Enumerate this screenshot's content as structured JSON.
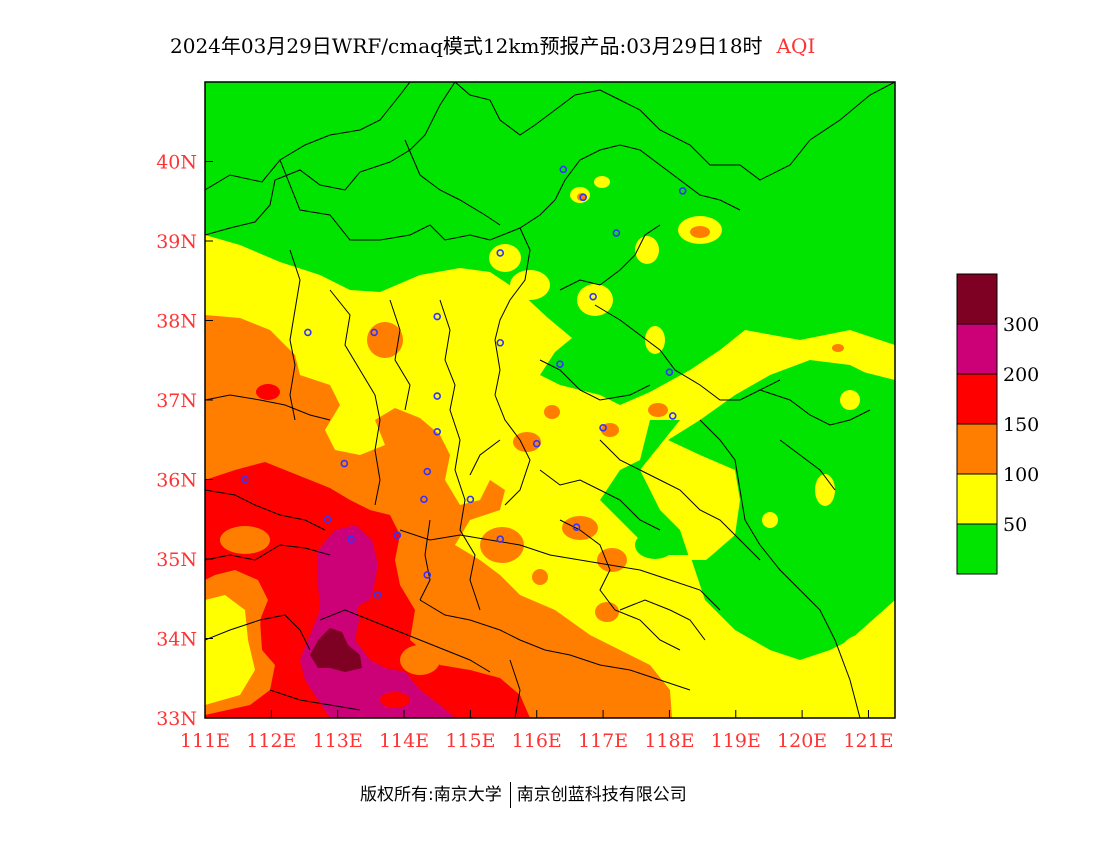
{
  "title": {
    "main": "2024年03月29日WRF/cmaq模式12km预报产品:03月29日18时",
    "variable": "AQI"
  },
  "footer": {
    "copyright": "版权所有:南京大学",
    "company": "南京创蓝科技有限公司"
  },
  "map": {
    "lon_range": [
      111,
      121.4
    ],
    "lat_range": [
      33,
      41
    ],
    "lon_ticks": [
      "111E",
      "112E",
      "113E",
      "114E",
      "115E",
      "116E",
      "117E",
      "118E",
      "119E",
      "120E",
      "121E"
    ],
    "lat_ticks": [
      "33N",
      "34N",
      "35N",
      "36N",
      "37N",
      "38N",
      "39N",
      "40N"
    ],
    "station_marker_color": "#3333ff",
    "border_color": "#000000"
  },
  "legend": {
    "bins": [
      {
        "color": "#7e0023",
        "label": "300"
      },
      {
        "color": "#cc0077",
        "label": "200"
      },
      {
        "color": "#ff0000",
        "label": "150"
      },
      {
        "color": "#ff7e00",
        "label": "100"
      },
      {
        "color": "#ffff00",
        "label": "50"
      },
      {
        "color": "#00e400",
        "label": ""
      }
    ],
    "top_label": "300",
    "labels": [
      "300",
      "200",
      "150",
      "100",
      "50"
    ]
  },
  "colors": {
    "good": "#00e400",
    "moderate": "#ffff00",
    "usg": "#ff7e00",
    "unhealthy": "#ff0000",
    "very_unhealthy": "#cc0077",
    "hazardous": "#7e0023",
    "tick_label": "#ff3333"
  },
  "stations": [
    [
      116.4,
      39.9
    ],
    [
      116.7,
      39.55
    ],
    [
      117.2,
      39.1
    ],
    [
      118.2,
      39.63
    ],
    [
      115.45,
      38.85
    ],
    [
      116.85,
      38.3
    ],
    [
      112.55,
      37.85
    ],
    [
      113.55,
      37.85
    ],
    [
      114.5,
      38.05
    ],
    [
      115.45,
      37.72
    ],
    [
      116.35,
      37.45
    ],
    [
      117.0,
      36.65
    ],
    [
      114.5,
      37.05
    ],
    [
      114.5,
      36.6
    ],
    [
      113.1,
      36.2
    ],
    [
      114.35,
      36.1
    ],
    [
      116.0,
      36.45
    ],
    [
      118.0,
      37.35
    ],
    [
      118.05,
      36.8
    ],
    [
      112.85,
      35.5
    ],
    [
      113.2,
      35.25
    ],
    [
      113.9,
      35.3
    ],
    [
      114.3,
      35.75
    ],
    [
      115.0,
      35.75
    ],
    [
      115.45,
      35.25
    ],
    [
      116.6,
      35.4
    ],
    [
      114.35,
      34.8
    ],
    [
      113.6,
      34.55
    ],
    [
      111.6,
      36.0
    ]
  ]
}
